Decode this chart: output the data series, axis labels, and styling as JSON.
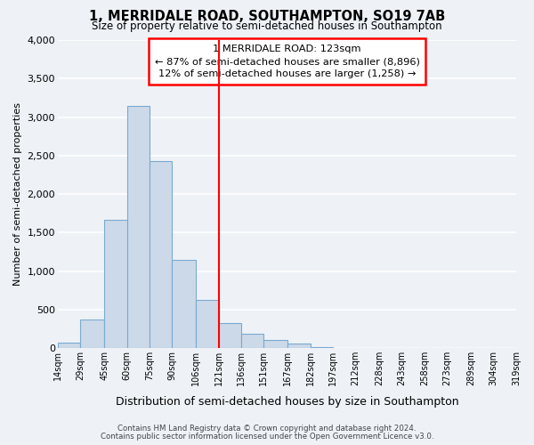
{
  "title": "1, MERRIDALE ROAD, SOUTHAMPTON, SO19 7AB",
  "subtitle": "Size of property relative to semi-detached houses in Southampton",
  "xlabel": "Distribution of semi-detached houses by size in Southampton",
  "ylabel": "Number of semi-detached properties",
  "bar_color": "#ccd9e8",
  "bar_edge_color": "#7aaad0",
  "background_color": "#eef2f7",
  "grid_color": "white",
  "vline_x": 121,
  "vline_color": "red",
  "bin_edges": [
    14,
    29,
    45,
    60,
    75,
    90,
    106,
    121,
    136,
    151,
    167,
    182,
    197,
    212,
    228,
    243,
    258,
    273,
    289,
    304,
    319
  ],
  "bar_heights": [
    75,
    370,
    1670,
    3150,
    2430,
    1150,
    630,
    330,
    185,
    110,
    55,
    10,
    0,
    0,
    0,
    0,
    0,
    0,
    0,
    0
  ],
  "ylim": [
    0,
    4000
  ],
  "yticks": [
    0,
    500,
    1000,
    1500,
    2000,
    2500,
    3000,
    3500,
    4000
  ],
  "annotation_title": "1 MERRIDALE ROAD: 123sqm",
  "annotation_line1": "← 87% of semi-detached houses are smaller (8,896)",
  "annotation_line2": "12% of semi-detached houses are larger (1,258) →",
  "annotation_box_color": "white",
  "annotation_border_color": "red",
  "footer_line1": "Contains HM Land Registry data © Crown copyright and database right 2024.",
  "footer_line2": "Contains public sector information licensed under the Open Government Licence v3.0.",
  "tick_labels": [
    "14sqm",
    "29sqm",
    "45sqm",
    "60sqm",
    "75sqm",
    "90sqm",
    "106sqm",
    "121sqm",
    "136sqm",
    "151sqm",
    "167sqm",
    "182sqm",
    "197sqm",
    "212sqm",
    "228sqm",
    "243sqm",
    "258sqm",
    "273sqm",
    "289sqm",
    "304sqm",
    "319sqm"
  ]
}
